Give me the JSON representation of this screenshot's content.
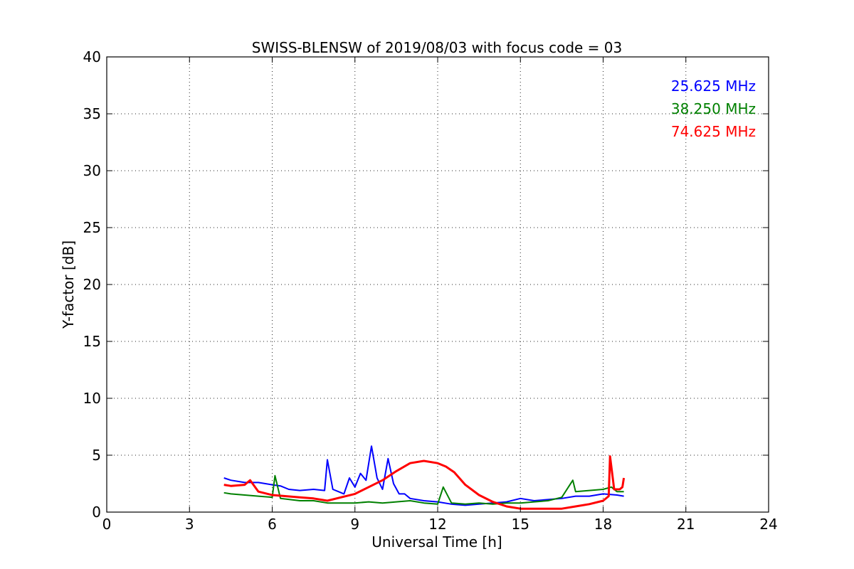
{
  "chart_data": {
    "type": "line",
    "title": "SWISS-BLENSW of 2019/08/03 with focus code = 03",
    "xlabel": "Universal Time [h]",
    "ylabel": "Y-factor [dB]",
    "xlim": [
      0,
      24
    ],
    "ylim": [
      0,
      40
    ],
    "xticks": [
      0,
      3,
      6,
      9,
      12,
      15,
      18,
      21,
      24
    ],
    "yticks": [
      0,
      5,
      10,
      15,
      20,
      25,
      30,
      35,
      40
    ],
    "grid": true,
    "legend_position": "top-right",
    "series": [
      {
        "name": "25.625 MHz",
        "color": "#0000ff",
        "x": [
          4.25,
          4.5,
          5.0,
          5.5,
          6.0,
          6.3,
          6.6,
          7.0,
          7.5,
          7.9,
          8.0,
          8.2,
          8.4,
          8.6,
          8.8,
          9.0,
          9.2,
          9.4,
          9.6,
          9.8,
          10.0,
          10.2,
          10.4,
          10.6,
          10.8,
          11.0,
          11.5,
          12.0,
          12.5,
          13.0,
          13.5,
          14.0,
          14.5,
          15.0,
          15.5,
          16.0,
          16.5,
          17.0,
          17.5,
          18.0,
          18.5,
          18.75
        ],
        "y": [
          3.0,
          2.8,
          2.6,
          2.6,
          2.4,
          2.3,
          2.0,
          1.9,
          2.0,
          1.9,
          4.6,
          2.0,
          1.8,
          1.6,
          3.0,
          2.2,
          3.4,
          2.8,
          5.8,
          3.0,
          2.0,
          4.7,
          2.5,
          1.6,
          1.6,
          1.2,
          1.0,
          0.9,
          0.7,
          0.6,
          0.7,
          0.8,
          0.9,
          1.2,
          1.0,
          1.1,
          1.2,
          1.4,
          1.4,
          1.6,
          1.5,
          1.4
        ]
      },
      {
        "name": "38.250 MHz",
        "color": "#008000",
        "x": [
          4.25,
          4.5,
          5.0,
          5.5,
          6.0,
          6.1,
          6.3,
          7.0,
          7.5,
          8.0,
          8.5,
          9.0,
          9.5,
          10.0,
          10.5,
          11.0,
          11.5,
          12.0,
          12.2,
          12.5,
          13.0,
          13.5,
          14.0,
          14.5,
          15.0,
          15.5,
          16.0,
          16.5,
          16.9,
          17.0,
          17.5,
          18.0,
          18.3,
          18.5,
          18.75
        ],
        "y": [
          1.7,
          1.6,
          1.5,
          1.4,
          1.3,
          3.2,
          1.2,
          1.0,
          1.0,
          0.8,
          0.8,
          0.8,
          0.9,
          0.8,
          0.9,
          1.0,
          0.8,
          0.7,
          2.2,
          0.8,
          0.7,
          0.8,
          0.7,
          0.8,
          0.8,
          0.9,
          1.0,
          1.3,
          2.8,
          1.8,
          1.9,
          2.0,
          2.2,
          1.8,
          1.8
        ]
      },
      {
        "name": "74.625 MHz",
        "color": "#ff0000",
        "x": [
          4.25,
          4.5,
          5.0,
          5.2,
          5.5,
          6.0,
          6.5,
          7.0,
          7.5,
          8.0,
          8.5,
          9.0,
          9.5,
          10.0,
          10.5,
          11.0,
          11.5,
          12.0,
          12.3,
          12.6,
          13.0,
          13.5,
          14.0,
          14.5,
          15.0,
          15.5,
          16.0,
          16.5,
          17.0,
          17.5,
          18.0,
          18.2,
          18.25,
          18.4,
          18.6,
          18.7,
          18.75
        ],
        "y": [
          2.4,
          2.3,
          2.4,
          2.8,
          1.8,
          1.5,
          1.4,
          1.3,
          1.2,
          1.0,
          1.3,
          1.6,
          2.2,
          2.8,
          3.6,
          4.3,
          4.5,
          4.3,
          4.0,
          3.5,
          2.4,
          1.5,
          0.9,
          0.5,
          0.3,
          0.3,
          0.3,
          0.3,
          0.5,
          0.7,
          1.0,
          1.4,
          4.9,
          2.0,
          2.0,
          2.2,
          3.0
        ]
      }
    ]
  }
}
